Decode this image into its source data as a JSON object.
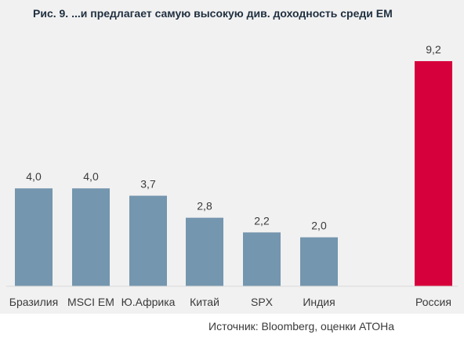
{
  "chart_data": {
    "type": "bar",
    "title": "Рис. 9. ...и предлагает самую высокую див. доходность среди ЕМ",
    "categories": [
      "Бразилия",
      "MSCI EM",
      "Ю.Африка",
      "Китай",
      "SPX",
      "Индия",
      "Россия"
    ],
    "values": [
      4.0,
      4.0,
      3.7,
      2.8,
      2.2,
      2.0,
      9.2
    ],
    "value_labels": [
      "4,0",
      "4,0",
      "3,7",
      "2,8",
      "2,2",
      "2,0",
      "9,2"
    ],
    "xlabel": "",
    "ylabel": "",
    "ylim": [
      0,
      10
    ],
    "grid": false,
    "legend": "none",
    "colors": {
      "default": "#7496ae",
      "highlight": "#d6003c",
      "baseline": "#d9d9d9",
      "background_panel": "#f1f1f1"
    },
    "highlight_index": 6
  },
  "source": "Источник: Bloomberg, оценки АТОНа"
}
